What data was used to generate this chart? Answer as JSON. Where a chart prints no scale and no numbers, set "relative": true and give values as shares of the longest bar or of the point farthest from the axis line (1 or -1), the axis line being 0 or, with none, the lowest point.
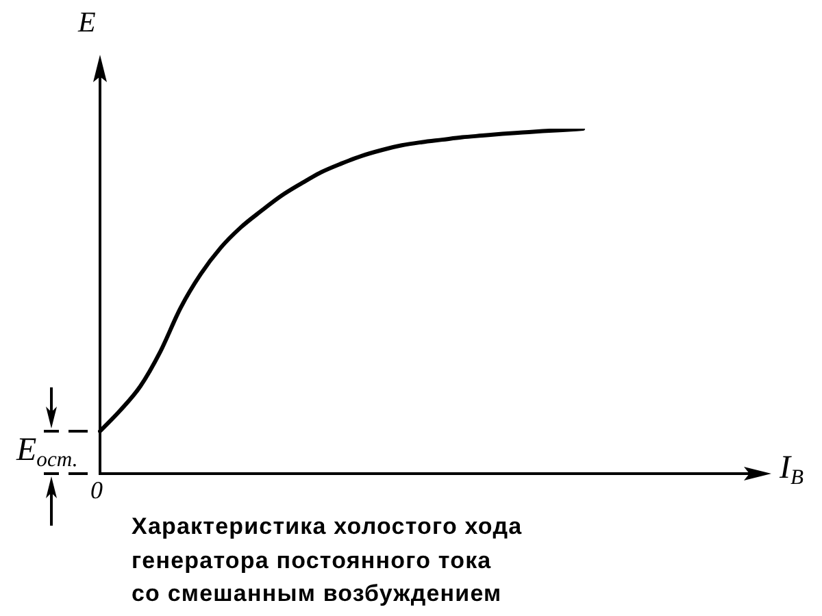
{
  "chart_data": {
    "type": "line",
    "title": "Характеристика холостого хода\nгенератора постоянного тока\nсо смешанным возбуждением",
    "xlabel": "I$_{В}$",
    "ylabel": "E",
    "categories": [
      null,
      null,
      null,
      null,
      null,
      null,
      null,
      null,
      null,
      null,
      null,
      null,
      null,
      null,
      null,
      null,
      null,
      null,
      null,
      null,
      null,
      null,
      null,
      null,
      null,
      null,
      null,
      null,
      null,
      null,
      null,
      null,
      null
    ],
    "values": [
      0.123,
      0.183,
      0.253,
      0.354,
      0.48,
      0.578,
      0.655,
      0.714,
      0.761,
      0.805,
      0.841,
      0.874,
      0.899,
      0.921,
      0.938,
      0.952,
      0.961,
      0.968,
      0.975,
      0.98,
      0.985,
      0.989,
      0.993,
      0.996,
      1,
      null,
      null,
      null,
      null,
      null,
      null,
      null,
      null
    ],
    "color": "#000000",
    "relative": true,
    "marker": "none",
    "ref_lines": [
      {
        "axis": "y",
        "value": 0.123,
        "label": "E$_{ост.}$"
      }
    ],
    "annotations": [
      "0"
    ]
  }
}
